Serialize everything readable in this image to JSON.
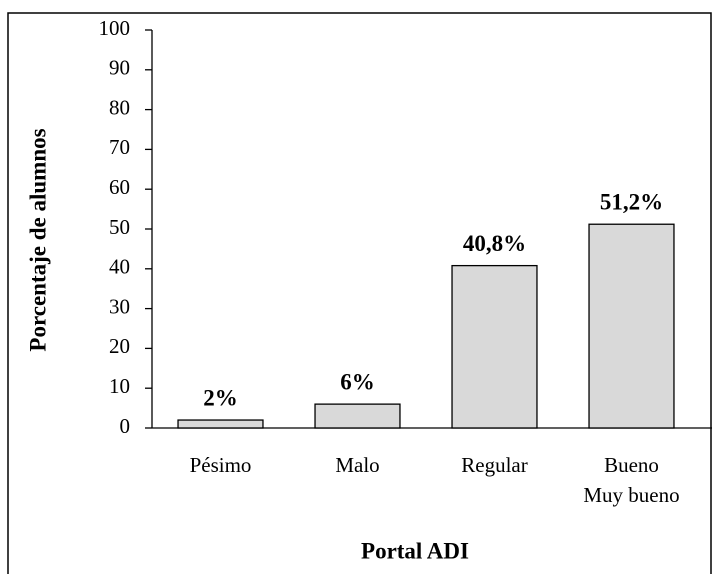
{
  "chart_data": {
    "type": "bar",
    "categories": [
      "Pésimo",
      "Malo",
      "Regular",
      [
        "Bueno",
        "Muy bueno"
      ]
    ],
    "values": [
      2,
      6,
      40.8,
      51.2
    ],
    "value_labels": [
      "2%",
      "6%",
      "40,8%",
      "51,2%"
    ],
    "color": "#d9d9d9",
    "x_label": "Portal ADI",
    "y_label": "Porcentaje de alumnos",
    "ylim": [
      0,
      100
    ],
    "yticks": [
      0,
      10,
      20,
      30,
      40,
      50,
      60,
      70,
      80,
      90,
      100
    ],
    "grid": false
  }
}
